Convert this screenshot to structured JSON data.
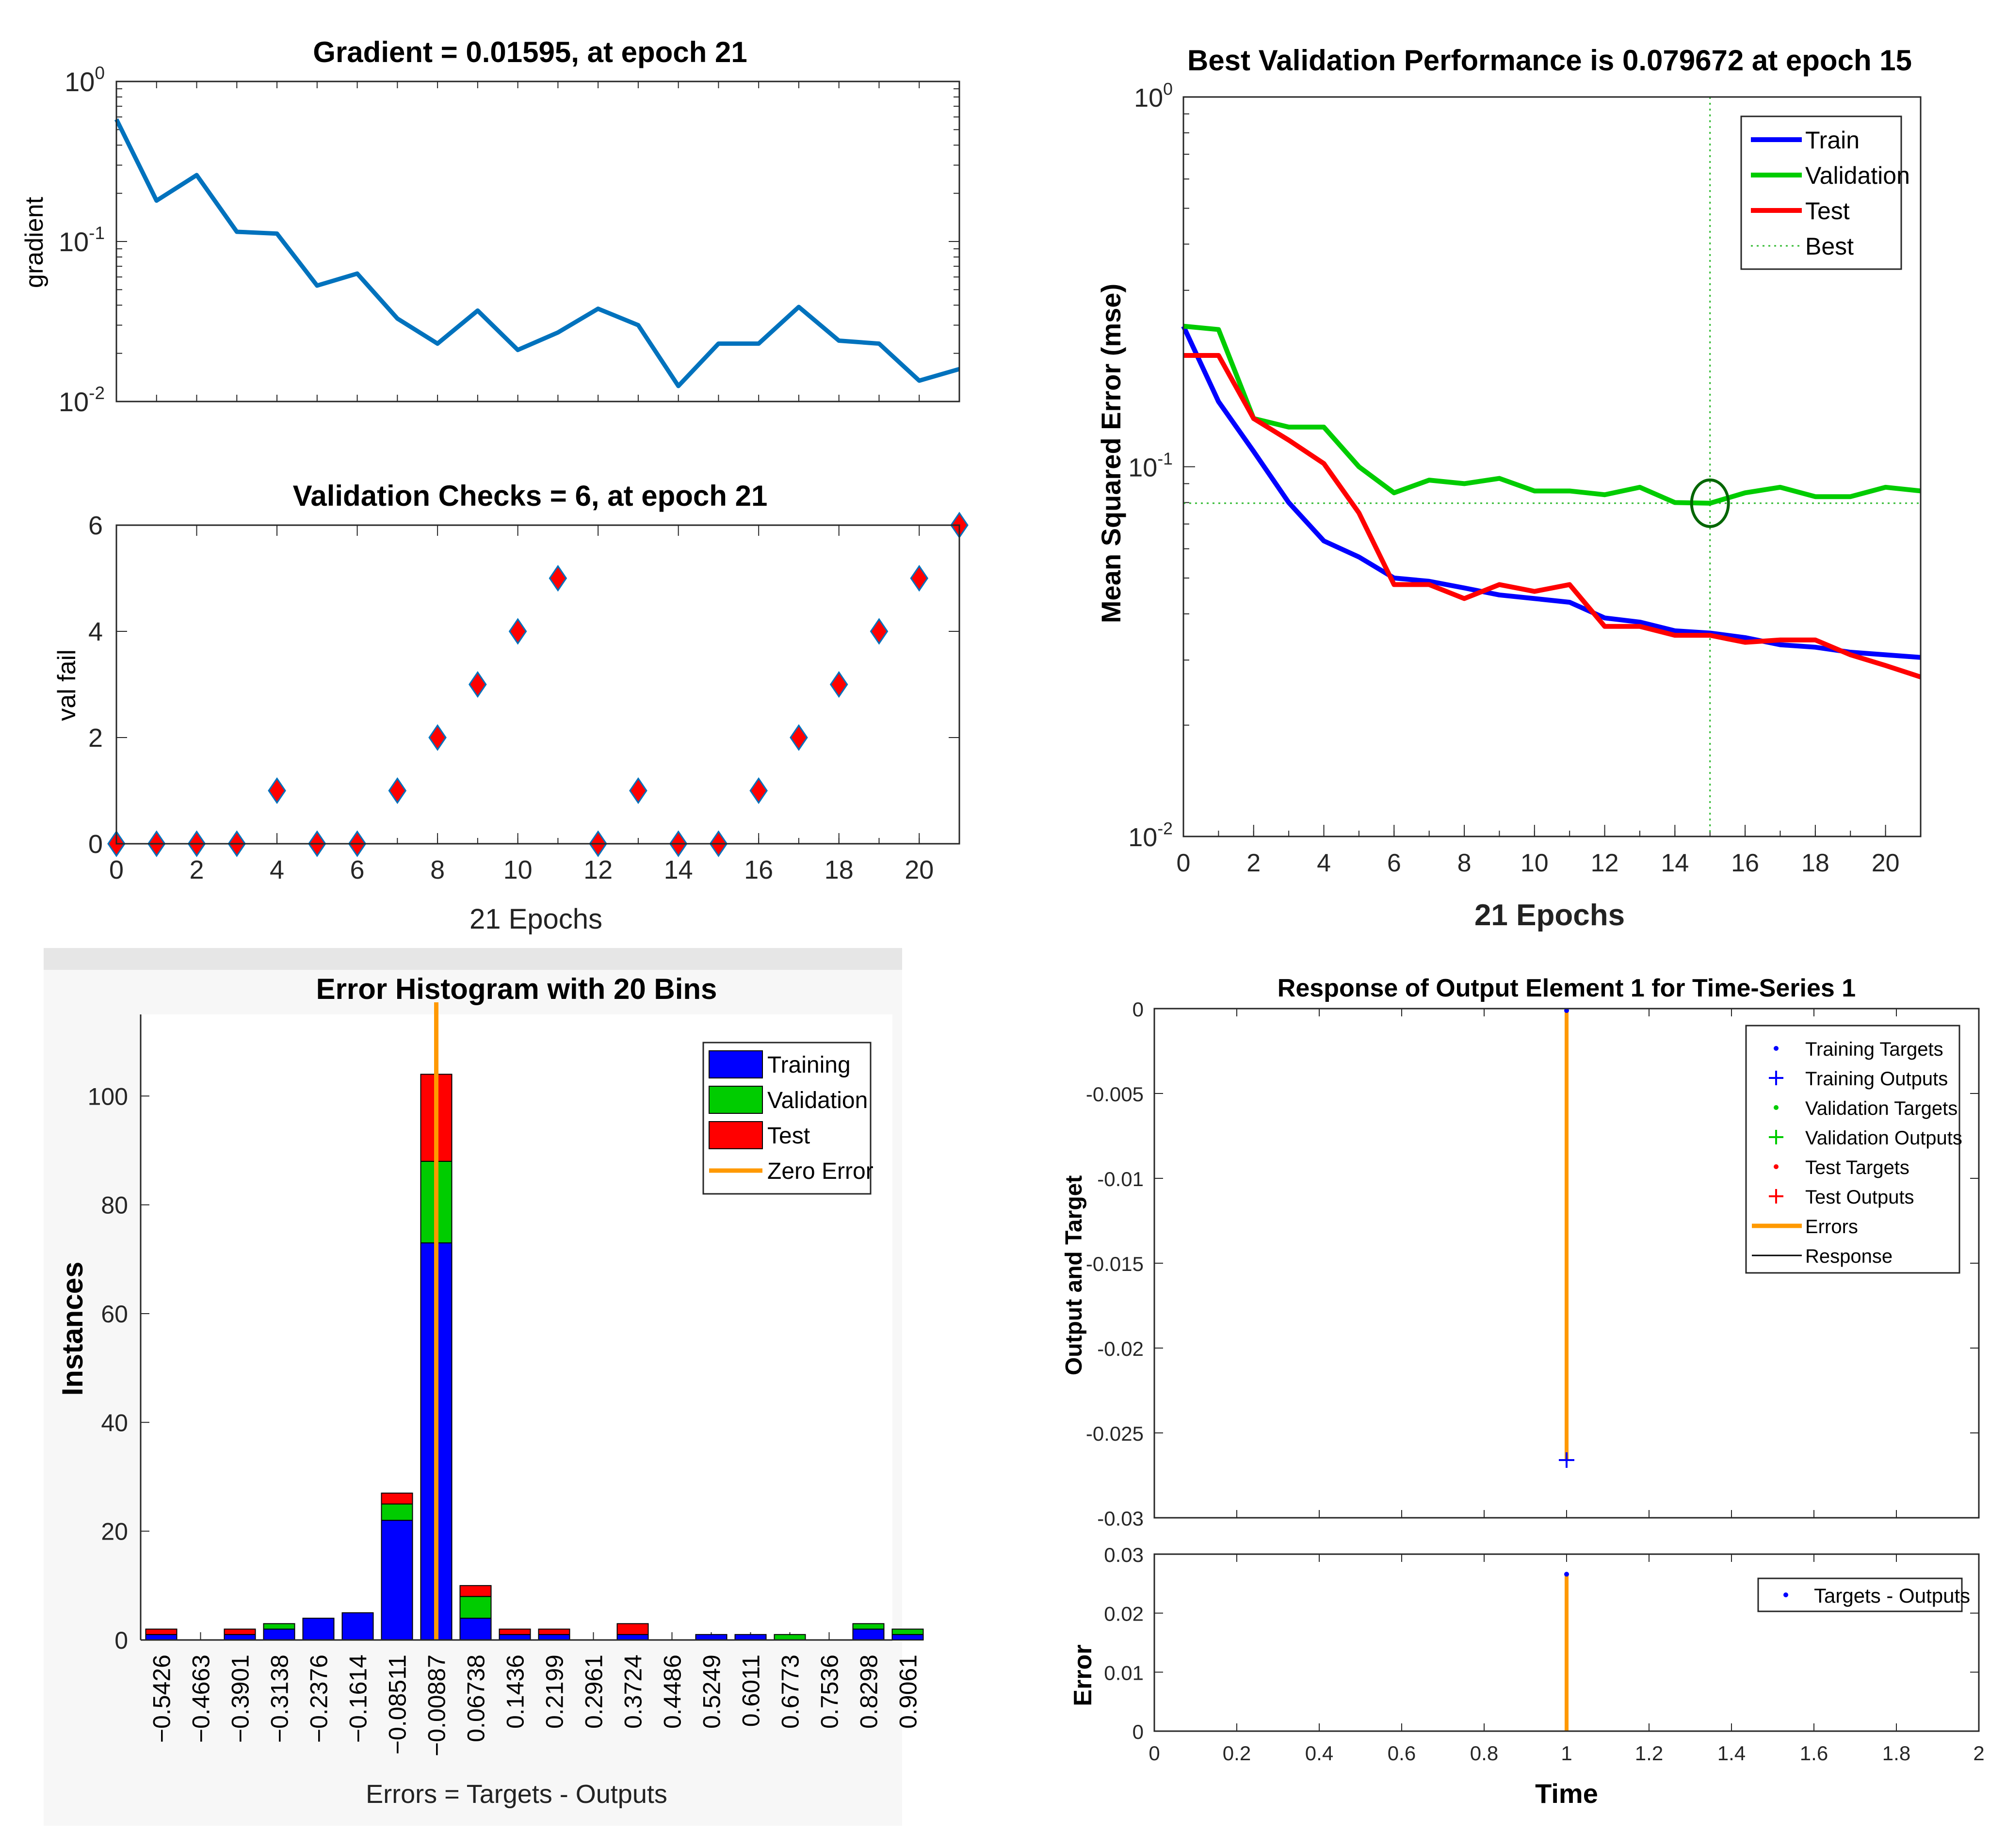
{
  "chart_data": [
    {
      "id": "gradient",
      "type": "line",
      "title": "Gradient = 0.01595, at epoch 21",
      "ylabel": "gradient",
      "xlabel": "",
      "yscale": "log",
      "ylim": [
        0.01,
        1
      ],
      "xlim": [
        0,
        21
      ],
      "ytick_labels": [
        {
          "value": 1,
          "base": "10",
          "exp": "0"
        },
        {
          "value": 0.1,
          "base": "10",
          "exp": "-1"
        },
        {
          "value": 0.01,
          "base": "10",
          "exp": "-2"
        }
      ],
      "x": [
        0,
        1,
        2,
        3,
        4,
        5,
        6,
        7,
        8,
        9,
        10,
        11,
        12,
        13,
        14,
        15,
        16,
        17,
        18,
        19,
        20,
        21
      ],
      "series": [
        {
          "name": "gradient",
          "color": "#0072BD",
          "values": [
            0.58,
            0.18,
            0.26,
            0.115,
            0.112,
            0.053,
            0.063,
            0.033,
            0.023,
            0.037,
            0.021,
            0.027,
            0.038,
            0.03,
            0.0125,
            0.023,
            0.023,
            0.039,
            0.024,
            0.023,
            0.0135,
            0.01595
          ]
        }
      ]
    },
    {
      "id": "valchecks",
      "type": "scatter",
      "title": "Validation Checks = 6, at epoch 21",
      "ylabel": "val fail",
      "xlabel": "21 Epochs",
      "ylim": [
        0,
        6
      ],
      "xlim": [
        0,
        21
      ],
      "xticks": [
        0,
        2,
        4,
        6,
        8,
        10,
        12,
        14,
        16,
        18,
        20
      ],
      "yticks": [
        0,
        2,
        4,
        6
      ],
      "x": [
        0,
        1,
        2,
        3,
        4,
        5,
        6,
        7,
        8,
        9,
        10,
        11,
        12,
        13,
        14,
        15,
        16,
        17,
        18,
        19,
        20,
        21
      ],
      "series": [
        {
          "name": "val fail",
          "color": "#FF0000",
          "edge": "#0072BD",
          "values": [
            0,
            0,
            0,
            0,
            1,
            0,
            0,
            1,
            2,
            3,
            4,
            5,
            0,
            1,
            0,
            0,
            1,
            2,
            3,
            4,
            5,
            6
          ]
        }
      ]
    },
    {
      "id": "performance",
      "type": "line",
      "title": "Best Validation Performance is 0.079672 at epoch 15",
      "ylabel": "Mean Squared Error  (mse)",
      "xlabel": "21 Epochs",
      "yscale": "log",
      "ylim": [
        0.01,
        1
      ],
      "xlim": [
        0,
        21
      ],
      "xticks": [
        0,
        2,
        4,
        6,
        8,
        10,
        12,
        14,
        16,
        18,
        20
      ],
      "ytick_labels": [
        {
          "value": 1,
          "base": "10",
          "exp": "0"
        },
        {
          "value": 0.1,
          "base": "10",
          "exp": "-1"
        },
        {
          "value": 0.01,
          "base": "10",
          "exp": "-2"
        }
      ],
      "x": [
        0,
        1,
        2,
        3,
        4,
        5,
        6,
        7,
        8,
        9,
        10,
        11,
        12,
        13,
        14,
        15,
        16,
        17,
        18,
        19,
        20,
        21
      ],
      "best": {
        "epoch": 15,
        "value": 0.079672
      },
      "series": [
        {
          "name": "Train",
          "color": "#0000FF",
          "values": [
            0.24,
            0.15,
            0.11,
            0.08,
            0.063,
            0.057,
            0.05,
            0.049,
            0.047,
            0.045,
            0.044,
            0.043,
            0.039,
            0.038,
            0.036,
            0.0355,
            0.0345,
            0.033,
            0.0325,
            0.0315,
            0.031,
            0.0305
          ]
        },
        {
          "name": "Validation",
          "color": "#00CC00",
          "values": [
            0.24,
            0.235,
            0.135,
            0.128,
            0.128,
            0.1,
            0.085,
            0.092,
            0.09,
            0.093,
            0.086,
            0.086,
            0.084,
            0.088,
            0.08,
            0.079672,
            0.085,
            0.088,
            0.083,
            0.083,
            0.088,
            0.086
          ]
        },
        {
          "name": "Test",
          "color": "#FF0000",
          "values": [
            0.2,
            0.2,
            0.135,
            0.118,
            0.102,
            0.075,
            0.048,
            0.048,
            0.044,
            0.048,
            0.046,
            0.048,
            0.037,
            0.037,
            0.035,
            0.035,
            0.0335,
            0.034,
            0.034,
            0.031,
            0.029,
            0.027
          ]
        }
      ],
      "legend": [
        "Train",
        "Validation",
        "Test",
        "Best"
      ]
    },
    {
      "id": "histogram",
      "type": "bar",
      "title": "Error Histogram with 20 Bins",
      "ylabel": "Instances",
      "xlabel": "Errors = Targets - Outputs",
      "ylim": [
        0,
        115
      ],
      "yticks": [
        0,
        20,
        40,
        60,
        80,
        100
      ],
      "categories": [
        "−0.5426",
        "−0.4663",
        "−0.3901",
        "−0.3138",
        "−0.2376",
        "−0.1614",
        "−0.08511",
        "−0.00887",
        "0.06738",
        "0.1436",
        "0.2199",
        "0.2961",
        "0.3724",
        "0.4486",
        "0.5249",
        "0.6011",
        "0.6773",
        "0.7536",
        "0.8298",
        "0.9061"
      ],
      "series": [
        {
          "name": "Training",
          "color": "#0000FF",
          "values": [
            1,
            0,
            1,
            2,
            4,
            5,
            22,
            73,
            4,
            1,
            1,
            0,
            1,
            0,
            1,
            1,
            0,
            0,
            2,
            1
          ]
        },
        {
          "name": "Validation",
          "color": "#00CC00",
          "values": [
            0,
            0,
            0,
            1,
            0,
            0,
            3,
            15,
            4,
            0,
            0,
            0,
            0,
            0,
            0,
            0,
            1,
            0,
            1,
            1
          ]
        },
        {
          "name": "Test",
          "color": "#FF0000",
          "values": [
            1,
            0,
            1,
            0,
            0,
            0,
            2,
            16,
            2,
            1,
            1,
            0,
            2,
            0,
            0,
            0,
            0,
            0,
            0,
            0
          ]
        }
      ],
      "zero_error": {
        "name": "Zero Error",
        "color": "#FF9900",
        "bin_index": 7.5
      },
      "legend": [
        "Training",
        "Validation",
        "Test",
        "Zero Error"
      ]
    },
    {
      "id": "response",
      "type": "scatter",
      "title": "Response of Output Element 1 for Time-Series 1",
      "ylabel": "Output and Target",
      "xlabel": "",
      "xlim": [
        0,
        2
      ],
      "ylim": [
        -0.03,
        0
      ],
      "yticks": [
        "0",
        "-0.005",
        "-0.01",
        "-0.015",
        "-0.02",
        "-0.025",
        "-0.03"
      ],
      "ytick_values": [
        0,
        -0.005,
        -0.01,
        -0.015,
        -0.02,
        -0.025,
        -0.03
      ],
      "points": {
        "time": 1,
        "target": 0,
        "output": -0.0266
      },
      "legend": [
        "Training Targets",
        "Training Outputs",
        "Validation Targets",
        "Validation Outputs",
        "Test Targets",
        "Test Outputs",
        "Errors",
        "Response"
      ]
    },
    {
      "id": "error",
      "type": "scatter",
      "title": "",
      "ylabel": "Error",
      "xlabel": "Time",
      "xlim": [
        0,
        2
      ],
      "ylim": [
        0,
        0.03
      ],
      "xticks": [
        "0",
        "0.2",
        "0.4",
        "0.6",
        "0.8",
        "1",
        "1.2",
        "1.4",
        "1.6",
        "1.8",
        "2"
      ],
      "xtick_values": [
        0,
        0.2,
        0.4,
        0.6,
        0.8,
        1,
        1.2,
        1.4,
        1.6,
        1.8,
        2
      ],
      "yticks": [
        "0",
        "0.01",
        "0.02",
        "0.03"
      ],
      "ytick_values": [
        0,
        0.01,
        0.02,
        0.03
      ],
      "points": {
        "time": 1,
        "error": 0.0266
      },
      "legend": [
        "Targets - Outputs"
      ]
    }
  ]
}
